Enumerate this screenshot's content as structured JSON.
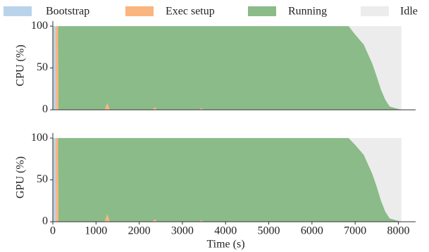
{
  "chart_data": [
    {
      "type": "stacked-area",
      "ylabel": "CPU (%)",
      "x": [
        0,
        60,
        70,
        120,
        130,
        1200,
        1260,
        1320,
        2300,
        2360,
        2420,
        3380,
        3440,
        3500,
        6850,
        7000,
        7200,
        7400,
        7500,
        7600,
        7700,
        7800,
        8000,
        8070
      ],
      "series": [
        {
          "name": "Bootstrap",
          "color": "#b9d3ea",
          "values": [
            100,
            100,
            0,
            0,
            0,
            0,
            0,
            0,
            0,
            0,
            0,
            0,
            0,
            0,
            0,
            0,
            0,
            0,
            0,
            0,
            0,
            0,
            0,
            0
          ]
        },
        {
          "name": "Exec setup",
          "color": "#fbb57f",
          "values": [
            0,
            0,
            100,
            100,
            0,
            0,
            8,
            0,
            0,
            3,
            0,
            0,
            2,
            0,
            0,
            0,
            0,
            0,
            0,
            0,
            0,
            0,
            0,
            0
          ]
        },
        {
          "name": "Running",
          "color": "#8abb88",
          "values": [
            0,
            0,
            0,
            0,
            100,
            100,
            92,
            100,
            100,
            97,
            100,
            100,
            98,
            100,
            100,
            90,
            78,
            55,
            40,
            24,
            12,
            4,
            1,
            0
          ]
        },
        {
          "name": "Idle",
          "color": "#ececec",
          "values": [
            0,
            0,
            0,
            0,
            0,
            0,
            0,
            0,
            0,
            0,
            0,
            0,
            0,
            0,
            0,
            10,
            22,
            45,
            60,
            76,
            88,
            96,
            99,
            100
          ]
        }
      ],
      "xlim": [
        0,
        8400
      ],
      "ylim": [
        0,
        106
      ],
      "yticks": [
        0,
        50,
        100
      ]
    },
    {
      "type": "stacked-area",
      "ylabel": "GPU (%)",
      "xlabel": "Time (s)",
      "x": [
        0,
        60,
        70,
        120,
        130,
        1200,
        1260,
        1320,
        2300,
        2360,
        2420,
        3380,
        3440,
        3500,
        6850,
        7000,
        7200,
        7400,
        7500,
        7600,
        7700,
        7800,
        8000,
        8070
      ],
      "series": [
        {
          "color": "#b9d3ea",
          "values": [
            100,
            100,
            0,
            0,
            0,
            0,
            0,
            0,
            0,
            0,
            0,
            0,
            0,
            0,
            0,
            0,
            0,
            0,
            0,
            0,
            0,
            0,
            0,
            0
          ]
        },
        {
          "color": "#fbb57f",
          "values": [
            0,
            0,
            100,
            100,
            0,
            0,
            9,
            0,
            0,
            3,
            0,
            0,
            2,
            0,
            0,
            0,
            0,
            0,
            0,
            0,
            0,
            0,
            0,
            0
          ]
        },
        {
          "color": "#8abb88",
          "values": [
            0,
            0,
            0,
            0,
            100,
            100,
            91,
            100,
            100,
            97,
            100,
            100,
            98,
            100,
            100,
            92,
            80,
            57,
            42,
            25,
            12,
            4,
            1,
            0
          ]
        },
        {
          "color": "#ececec",
          "values": [
            0,
            0,
            0,
            0,
            0,
            0,
            0,
            0,
            0,
            0,
            0,
            0,
            0,
            0,
            0,
            8,
            20,
            43,
            58,
            75,
            88,
            96,
            99,
            100
          ]
        }
      ],
      "xlim": [
        0,
        8400
      ],
      "ylim": [
        0,
        106
      ],
      "yticks": [
        0,
        50,
        100
      ],
      "xticks": [
        0,
        1000,
        2000,
        3000,
        4000,
        5000,
        6000,
        7000,
        8000
      ]
    }
  ]
}
